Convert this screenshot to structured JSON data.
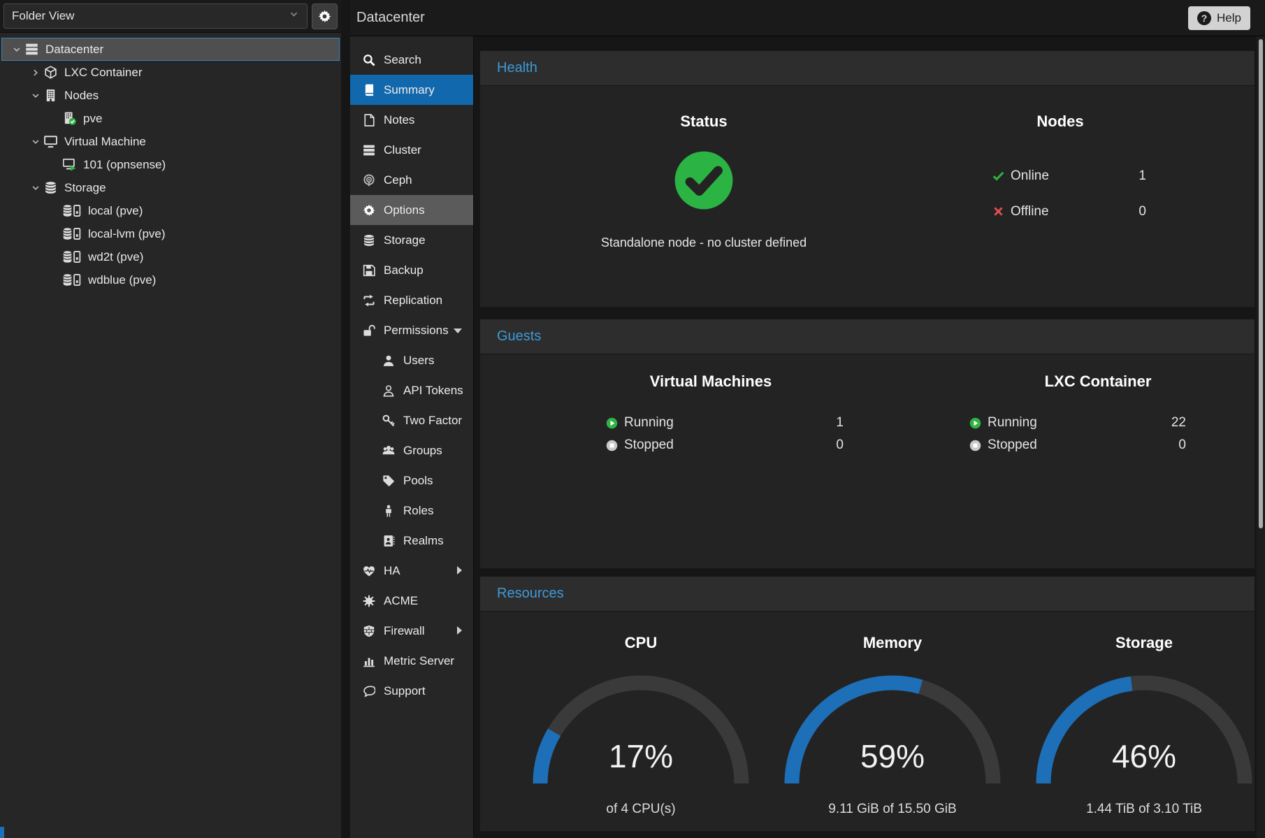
{
  "colors": {
    "selection_blue": "#1268ac",
    "panel_title_blue": "#3f9ad8",
    "gauge_blue": "#1d6fb8",
    "gauge_track": "#3a3a3a",
    "green": "#2fb344",
    "red": "#e14f4f",
    "stopped_gray": "#c9c9c9"
  },
  "left_panel": {
    "view_selector": "Folder View",
    "tree": [
      {
        "label": "Datacenter",
        "icon": "server-icon",
        "level": 0,
        "chevron": "down",
        "selected": true
      },
      {
        "label": "LXC Container",
        "icon": "cube-icon",
        "level": 1,
        "chevron": "right"
      },
      {
        "label": "Nodes",
        "icon": "building-icon",
        "level": 1,
        "chevron": "down"
      },
      {
        "label": "pve",
        "icon": "building-check-icon",
        "level": 2
      },
      {
        "label": "Virtual Machine",
        "icon": "monitor-icon",
        "level": 1,
        "chevron": "down"
      },
      {
        "label": "101 (opnsense)",
        "icon": "monitor-running-icon",
        "level": 2
      },
      {
        "label": "Storage",
        "icon": "database-icon",
        "level": 1,
        "chevron": "down"
      },
      {
        "label": "local (pve)",
        "icon": "database-drive-icon",
        "level": 2
      },
      {
        "label": "local-lvm (pve)",
        "icon": "database-drive-icon",
        "level": 2
      },
      {
        "label": "wd2t (pve)",
        "icon": "database-drive-icon",
        "level": 2
      },
      {
        "label": "wdblue (pve)",
        "icon": "database-drive-icon",
        "level": 2
      }
    ]
  },
  "header": {
    "title": "Datacenter",
    "help_label": "Help"
  },
  "menu": {
    "items": [
      {
        "label": "Search",
        "icon": "search-icon"
      },
      {
        "label": "Summary",
        "icon": "book-icon",
        "selected": true
      },
      {
        "label": "Notes",
        "icon": "note-icon"
      },
      {
        "label": "Cluster",
        "icon": "cluster-icon"
      },
      {
        "label": "Ceph",
        "icon": "ceph-icon"
      },
      {
        "label": "Options",
        "icon": "gear-icon",
        "highlighted": true
      },
      {
        "label": "Storage",
        "icon": "database-icon"
      },
      {
        "label": "Backup",
        "icon": "floppy-icon"
      },
      {
        "label": "Replication",
        "icon": "replication-icon"
      },
      {
        "label": "Permissions",
        "icon": "unlock-icon",
        "arrow": "down"
      },
      {
        "label": "Users",
        "icon": "user-icon",
        "sub": true
      },
      {
        "label": "API Tokens",
        "icon": "user-outline-icon",
        "sub": true
      },
      {
        "label": "Two Factor",
        "icon": "key-icon",
        "sub": true
      },
      {
        "label": "Groups",
        "icon": "users-icon",
        "sub": true
      },
      {
        "label": "Pools",
        "icon": "tag-icon",
        "sub": true
      },
      {
        "label": "Roles",
        "icon": "person-icon",
        "sub": true
      },
      {
        "label": "Realms",
        "icon": "address-book-icon",
        "sub": true
      },
      {
        "label": "HA",
        "icon": "heartbeat-icon",
        "arrow": "right"
      },
      {
        "label": "ACME",
        "icon": "burst-icon"
      },
      {
        "label": "Firewall",
        "icon": "shield-icon",
        "arrow": "right"
      },
      {
        "label": "Metric Server",
        "icon": "bar-chart-icon"
      },
      {
        "label": "Support",
        "icon": "support-icon"
      }
    ]
  },
  "health": {
    "title": "Health",
    "status": {
      "heading": "Status",
      "icon": "check-circle-icon",
      "message": "Standalone node - no cluster defined"
    },
    "nodes": {
      "heading": "Nodes",
      "rows": [
        {
          "icon": "check-icon",
          "label": "Online",
          "value": "1"
        },
        {
          "icon": "cross-icon",
          "label": "Offline",
          "value": "0"
        }
      ]
    }
  },
  "guests": {
    "title": "Guests",
    "columns": [
      {
        "heading": "Virtual Machines",
        "rows": [
          {
            "icon": "play-circle-icon",
            "label": "Running",
            "value": "1"
          },
          {
            "icon": "stop-circle-icon",
            "label": "Stopped",
            "value": "0"
          }
        ]
      },
      {
        "heading": "LXC Container",
        "rows": [
          {
            "icon": "play-circle-icon",
            "label": "Running",
            "value": "22"
          },
          {
            "icon": "stop-circle-icon",
            "label": "Stopped",
            "value": "0"
          }
        ]
      }
    ]
  },
  "resources": {
    "title": "Resources",
    "gauges": [
      {
        "heading": "CPU",
        "percent": 17,
        "label": "17%",
        "sub": "of 4 CPU(s)"
      },
      {
        "heading": "Memory",
        "percent": 59,
        "label": "59%",
        "sub": "9.11 GiB of 15.50 GiB"
      },
      {
        "heading": "Storage",
        "percent": 46,
        "label": "46%",
        "sub": "1.44 TiB of 3.10 TiB"
      }
    ]
  },
  "chart_data": [
    {
      "type": "gauge",
      "title": "CPU",
      "value_percent": 17,
      "annotation": "of 4 CPU(s)"
    },
    {
      "type": "gauge",
      "title": "Memory",
      "value_percent": 59,
      "annotation": "9.11 GiB of 15.50 GiB",
      "used": "9.11 GiB",
      "total": "15.50 GiB"
    },
    {
      "type": "gauge",
      "title": "Storage",
      "value_percent": 46,
      "annotation": "1.44 TiB of 3.10 TiB",
      "used": "1.44 TiB",
      "total": "3.10 TiB"
    }
  ]
}
